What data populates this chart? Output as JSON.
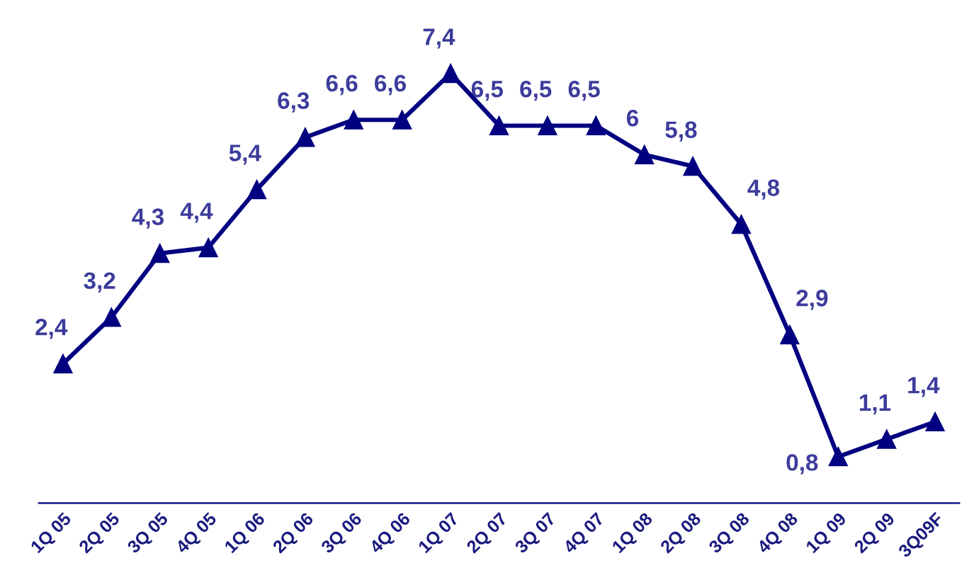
{
  "chart_data": {
    "type": "line",
    "categories": [
      "1Q 05",
      "2Q 05",
      "3Q 05",
      "4Q 05",
      "1Q 06",
      "2Q 06",
      "3Q 06",
      "4Q 06",
      "1Q 07",
      "2Q 07",
      "3Q 07",
      "4Q 07",
      "1Q 08",
      "2Q 08",
      "3Q 08",
      "4Q 08",
      "1Q 09",
      "2Q 09",
      "3Q09F"
    ],
    "series": [
      {
        "color": "#000080",
        "values": [
          2.4,
          3.2,
          4.3,
          4.4,
          5.4,
          6.3,
          6.6,
          6.6,
          7.4,
          6.5,
          6.5,
          6.5,
          6,
          5.8,
          4.8,
          2.9,
          0.8,
          1.1,
          1.4
        ],
        "value_labels": [
          "2,4",
          "3,2",
          "4,3",
          "4,4",
          "5,4",
          "6,3",
          "6,6",
          "6,6",
          "7,4",
          "6,5",
          "6,5",
          "6,5",
          "6",
          "5,8",
          "4,8",
          "2,9",
          "0,8",
          "1,1",
          "1,4"
        ]
      }
    ],
    "marker": "triangle",
    "line_style": "solid",
    "grid": false,
    "legend": false,
    "tick_labels": "x"
  }
}
